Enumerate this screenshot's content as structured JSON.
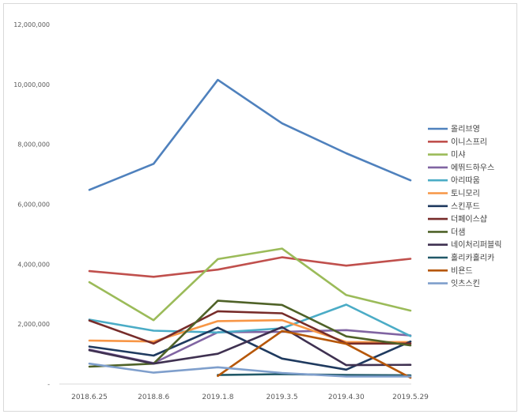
{
  "chart_data": {
    "type": "line",
    "categories": [
      "2018.6.25",
      "2018.8.6",
      "2019.1.8",
      "2019.3.5",
      "2019.4.30",
      "2019.5.29"
    ],
    "ylim": [
      0,
      12000000
    ],
    "yticks": [
      0,
      2000000,
      4000000,
      6000000,
      8000000,
      10000000,
      12000000
    ],
    "ytick_labels": [
      "-",
      "2,000,000",
      "4,000,000",
      "6,000,000",
      "8,000,000",
      "10,000,000",
      "12,000,000"
    ],
    "grid": false,
    "legend": "right",
    "series": [
      {
        "name": "올리브영",
        "color": "#4f81bd",
        "values": [
          6480000,
          7350000,
          10150000,
          8700000,
          7700000,
          6800000
        ]
      },
      {
        "name": "이니스프리",
        "color": "#c0504d",
        "values": [
          3770000,
          3580000,
          3820000,
          4230000,
          3950000,
          4180000
        ]
      },
      {
        "name": "미샤",
        "color": "#9bbb59",
        "values": [
          3400000,
          2130000,
          4170000,
          4520000,
          2970000,
          2450000
        ]
      },
      {
        "name": "에뛰드하우스",
        "color": "#8064a2",
        "values": [
          1150000,
          700000,
          1730000,
          1740000,
          1800000,
          1620000
        ]
      },
      {
        "name": "아리따움",
        "color": "#4bacc6",
        "values": [
          2150000,
          1780000,
          1720000,
          1860000,
          2650000,
          1600000
        ]
      },
      {
        "name": "토니모리",
        "color": "#f79646",
        "values": [
          1450000,
          1420000,
          2100000,
          2130000,
          1400000,
          1400000
        ]
      },
      {
        "name": "스킨푸드",
        "color": "#1f3a5f",
        "values": [
          1250000,
          950000,
          1880000,
          850000,
          480000,
          1420000
        ]
      },
      {
        "name": "더페이스샵",
        "color": "#772c2a",
        "values": [
          2120000,
          1350000,
          2430000,
          2360000,
          1350000,
          1350000
        ]
      },
      {
        "name": "더샘",
        "color": "#4f6228",
        "values": [
          580000,
          680000,
          2780000,
          2640000,
          1590000,
          1290000
        ]
      },
      {
        "name": "네이처리퍼블릭",
        "color": "#3f3151",
        "values": [
          1130000,
          680000,
          1010000,
          1900000,
          630000,
          640000
        ]
      },
      {
        "name": "홀리카홀리카",
        "color": "#215968",
        "values": [
          null,
          null,
          300000,
          330000,
          300000,
          290000
        ]
      },
      {
        "name": "비욘드",
        "color": "#b65708",
        "values": [
          null,
          null,
          270000,
          1770000,
          1340000,
          210000
        ]
      },
      {
        "name": "잇츠스킨",
        "color": "#7f9fcc",
        "values": [
          680000,
          380000,
          560000,
          370000,
          250000,
          250000
        ]
      }
    ]
  }
}
